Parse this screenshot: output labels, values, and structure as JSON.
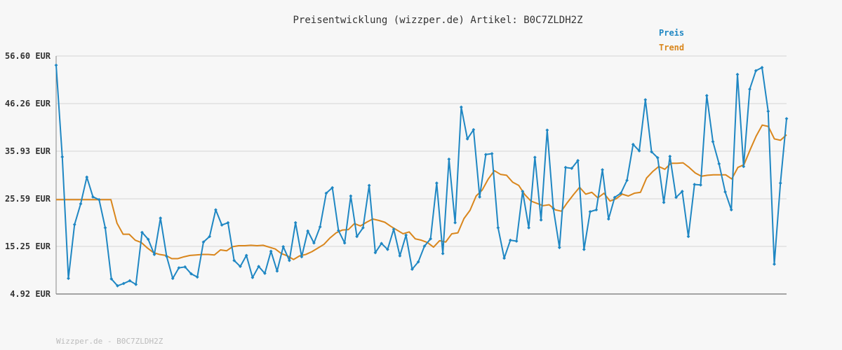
{
  "chart_data": {
    "type": "line",
    "title": "Preisentwicklung (wizzper.de) Artikel: B0C7ZLDH2Z",
    "footer": "Wizzper.de - B0C7ZLDH2Z",
    "legend_placement": "top-right",
    "grid": true,
    "y_ticks": [
      "56.60 EUR",
      "46.26 EUR",
      "35.93 EUR",
      "25.59 EUR",
      "15.25 EUR",
      "4.92 EUR"
    ],
    "y_tick_values": [
      56.6,
      46.26,
      35.93,
      25.59,
      15.25,
      4.92
    ],
    "ylim": [
      4.92,
      56.6
    ],
    "colors": {
      "preis": "#1f87c3",
      "trend": "#d9861c",
      "grid": "#e0e0e0",
      "axis": "#888888"
    },
    "series": [
      {
        "name": "Preis",
        "values": [
          54.6,
          34.7,
          8.3,
          20.0,
          24.5,
          30.3,
          26.0,
          25.4,
          19.3,
          8.2,
          6.7,
          7.2,
          7.8,
          7.0,
          18.3,
          16.8,
          13.5,
          21.4,
          13.1,
          8.3,
          10.6,
          10.8,
          9.3,
          8.6,
          16.2,
          17.4,
          23.2,
          19.9,
          20.4,
          12.2,
          10.9,
          13.3,
          8.5,
          10.9,
          9.4,
          14.2,
          9.9,
          15.2,
          12.2,
          20.4,
          13.0,
          18.6,
          16.0,
          19.5,
          26.8,
          28.0,
          18.7,
          16.0,
          26.2,
          17.4,
          19.3,
          28.5,
          13.9,
          15.9,
          14.6,
          19.0,
          13.2,
          17.7,
          10.3,
          11.9,
          15.3,
          16.9,
          29.0,
          13.7,
          34.2,
          20.4,
          45.5,
          38.6,
          40.6,
          26.0,
          35.2,
          35.4,
          19.3,
          12.7,
          16.6,
          16.4,
          27.2,
          19.3,
          34.6,
          21.0,
          40.5,
          23.5,
          15.0,
          32.4,
          32.2,
          33.9,
          14.6,
          22.8,
          23.2,
          31.9,
          21.2,
          25.9,
          26.8,
          29.6,
          37.4,
          36.0,
          47.1,
          35.8,
          34.5,
          24.8,
          34.8,
          25.9,
          27.2,
          17.4,
          28.7,
          28.6,
          48.0,
          38.0,
          33.2,
          27.1,
          23.2,
          52.6,
          32.6,
          49.4,
          53.4,
          54.1,
          44.6,
          11.4,
          29.0,
          43.0
        ],
        "marker": "diamond"
      },
      {
        "name": "Trend",
        "values": [
          25.4,
          25.4,
          25.4,
          25.4,
          25.4,
          25.4,
          25.4,
          25.4,
          25.4,
          25.4,
          20.3,
          17.9,
          17.9,
          16.6,
          16.1,
          14.9,
          13.9,
          13.5,
          13.3,
          12.6,
          12.6,
          13.0,
          13.3,
          13.4,
          13.5,
          13.5,
          13.4,
          14.5,
          14.3,
          15.2,
          15.4,
          15.4,
          15.5,
          15.4,
          15.5,
          15.1,
          14.7,
          13.7,
          13.2,
          12.4,
          13.2,
          13.5,
          14.1,
          14.9,
          15.7,
          17.1,
          18.2,
          18.8,
          18.9,
          20.2,
          19.7,
          20.5,
          21.2,
          20.9,
          20.5,
          19.6,
          18.8,
          18.0,
          18.4,
          16.9,
          16.6,
          16.1,
          15.1,
          16.5,
          16.2,
          18.0,
          18.2,
          21.3,
          23.1,
          26.2,
          27.5,
          29.9,
          31.7,
          30.9,
          30.7,
          29.2,
          28.5,
          26.5,
          25.1,
          24.6,
          24.1,
          24.3,
          23.2,
          22.9,
          24.8,
          26.5,
          28.1,
          26.6,
          27.0,
          25.8,
          26.8,
          25.1,
          25.6,
          26.6,
          26.2,
          26.8,
          27.0,
          30.1,
          31.5,
          32.6,
          32.0,
          33.3,
          33.3,
          33.4,
          32.4,
          31.2,
          30.5,
          30.7,
          30.8,
          30.8,
          30.8,
          29.9,
          32.4,
          33.0,
          36.2,
          39.2,
          41.6,
          41.3,
          38.6,
          38.3,
          39.5
        ],
        "marker": "none"
      }
    ]
  }
}
